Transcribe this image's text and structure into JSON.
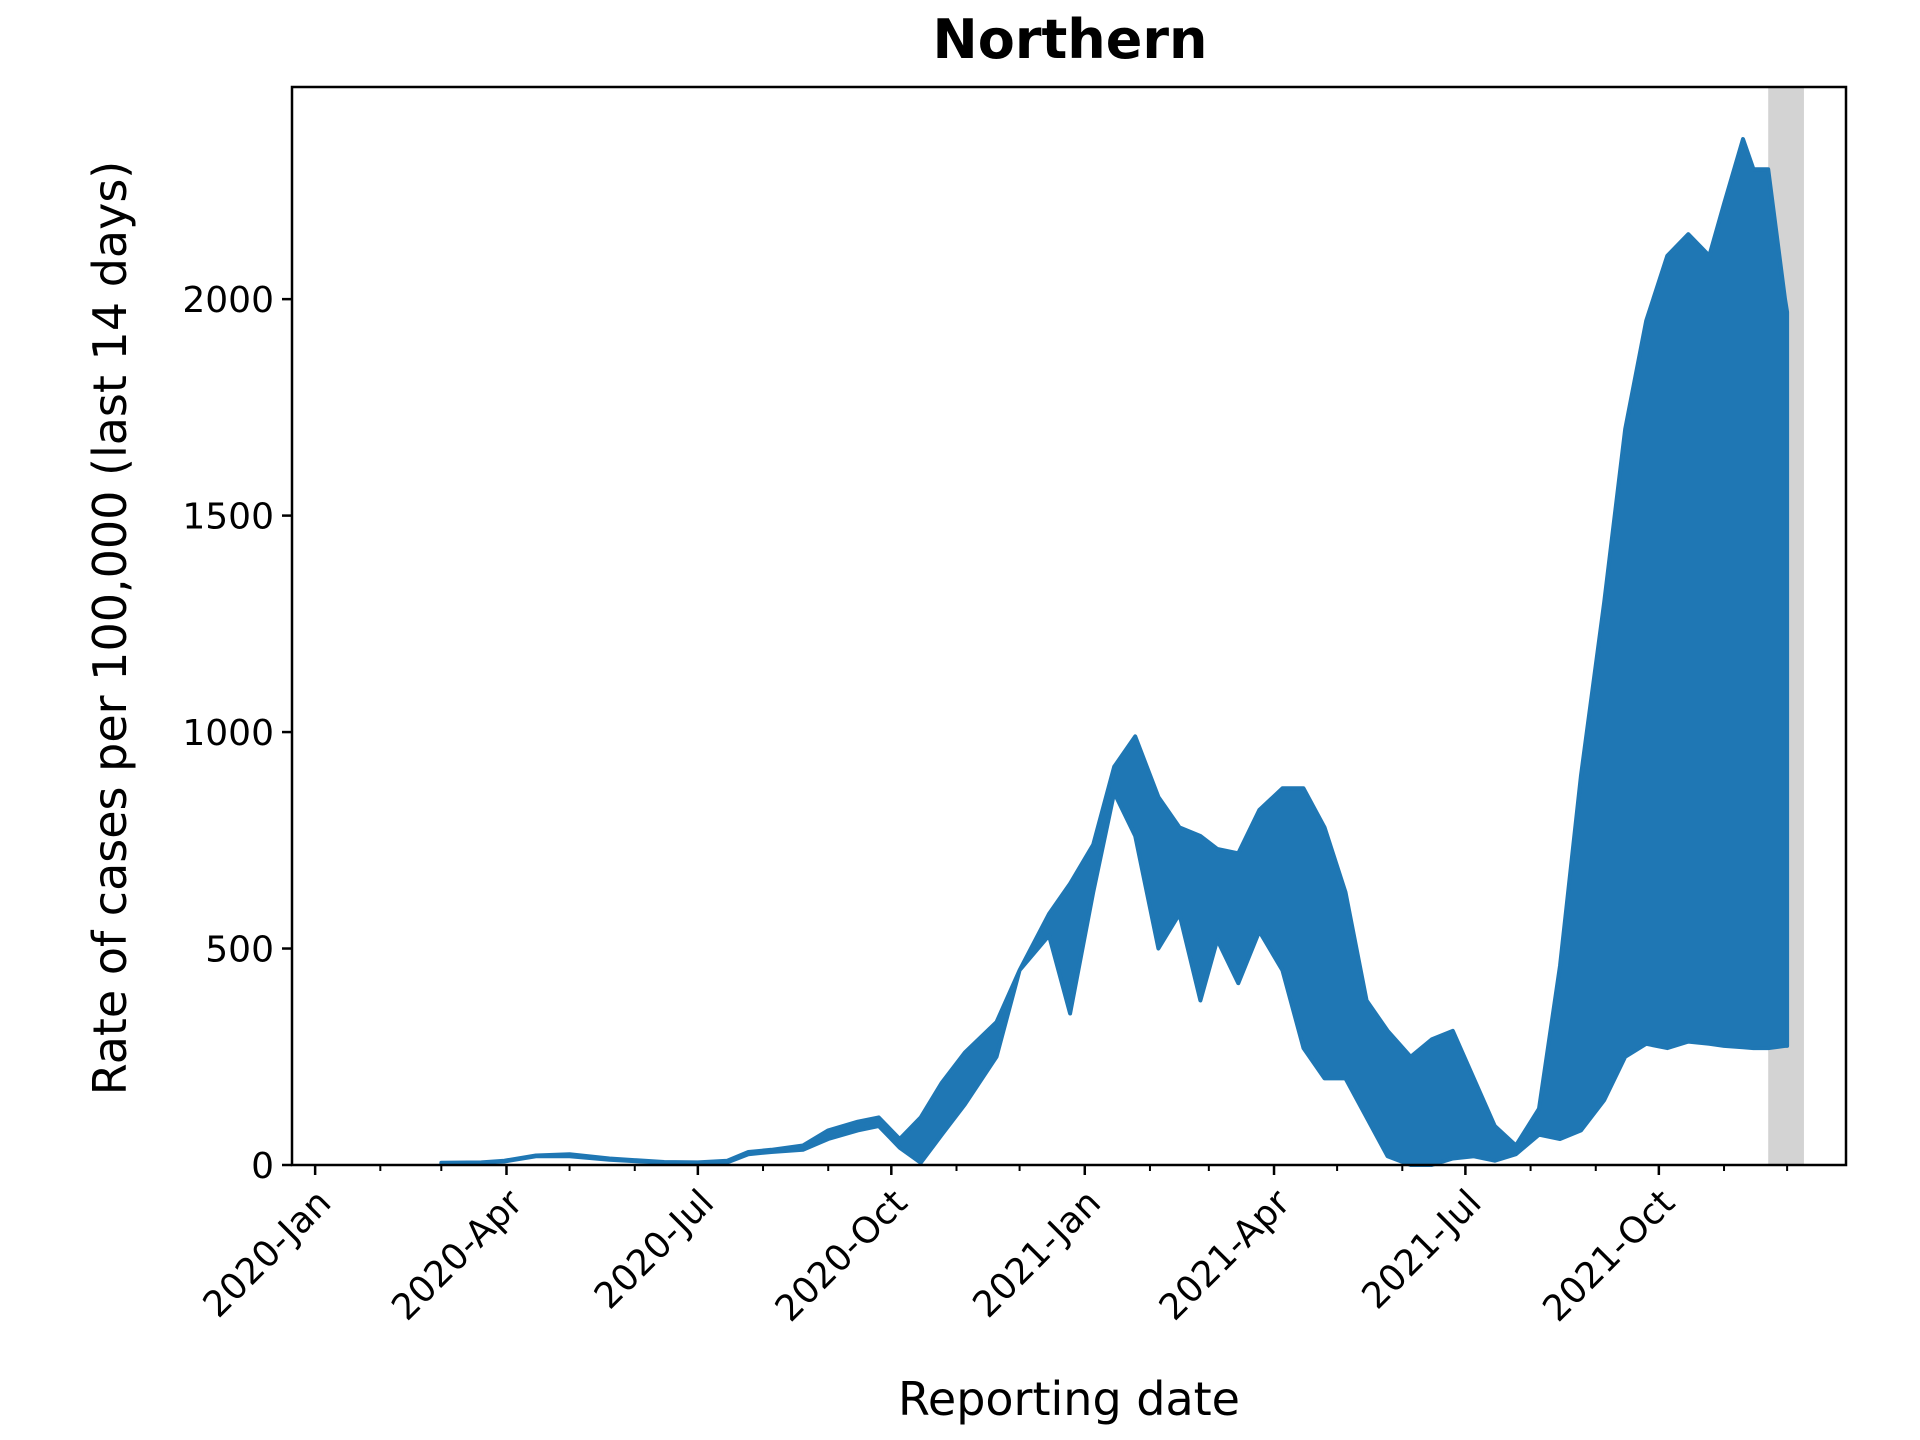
{
  "chart_data": {
    "type": "area",
    "title": "Northern",
    "xlabel": "Reporting date",
    "ylabel": "Rate of cases per 100,000 (last 14 days)",
    "y_ticks": [
      0,
      500,
      1000,
      1500,
      2000
    ],
    "y_tick_labels": [
      "0",
      "500",
      "1000",
      "1500",
      "2000"
    ],
    "ylim": [
      0,
      2490
    ],
    "xlim": [
      "2019-12-21",
      "2021-12-29"
    ],
    "x_ticks": [
      "2020-01-01",
      "2020-04-01",
      "2020-07-01",
      "2020-10-01",
      "2021-01-01",
      "2021-04-01",
      "2021-07-01",
      "2021-10-01"
    ],
    "x_tick_labels": [
      "2020-Jan",
      "2020-Apr",
      "2020-Jul",
      "2020-Oct",
      "2021-Jan",
      "2021-Apr",
      "2021-Jul",
      "2021-Oct"
    ],
    "x_minor_ticks": [
      "2020-02-01",
      "2020-03-01",
      "2020-05-01",
      "2020-06-01",
      "2020-08-01",
      "2020-09-01",
      "2020-11-01",
      "2020-12-01",
      "2021-02-01",
      "2021-03-01",
      "2021-05-01",
      "2021-06-01",
      "2021-08-01",
      "2021-09-01",
      "2021-11-01",
      "2021-12-01"
    ],
    "shaded_region": {
      "start": "2021-11-22",
      "end": "2021-12-09",
      "color": "#d3d3d3"
    },
    "series": [
      {
        "color": "#1f77b4",
        "x": [
          "2020-03-01",
          "2020-03-20",
          "2020-03-31",
          "2020-04-15",
          "2020-05-01",
          "2020-05-20",
          "2020-06-15",
          "2020-07-01",
          "2020-07-15",
          "2020-07-25",
          "2020-08-05",
          "2020-08-20",
          "2020-09-01",
          "2020-09-15",
          "2020-09-25",
          "2020-10-05",
          "2020-10-15",
          "2020-10-25",
          "2020-11-05",
          "2020-11-20",
          "2020-12-01",
          "2020-12-15",
          "2020-12-25",
          "2021-01-05",
          "2021-01-15",
          "2021-01-25",
          "2021-02-05",
          "2021-02-15",
          "2021-02-25",
          "2021-03-05",
          "2021-03-15",
          "2021-03-25",
          "2021-04-05",
          "2021-04-15",
          "2021-04-25",
          "2021-05-05",
          "2021-05-15",
          "2021-05-25",
          "2021-06-05",
          "2021-06-15",
          "2021-06-25",
          "2021-07-05",
          "2021-07-15",
          "2021-07-25",
          "2021-08-05",
          "2021-08-15",
          "2021-08-25",
          "2021-09-05",
          "2021-09-15",
          "2021-09-25",
          "2021-10-05",
          "2021-10-15",
          "2021-10-25",
          "2021-11-01",
          "2021-11-10",
          "2021-11-15",
          "2021-11-22",
          "2021-11-30",
          "2021-12-01"
        ],
        "upper": [
          5,
          6,
          10,
          22,
          25,
          15,
          7,
          6,
          10,
          30,
          35,
          45,
          80,
          100,
          110,
          60,
          110,
          190,
          260,
          330,
          450,
          580,
          650,
          740,
          920,
          990,
          850,
          780,
          760,
          730,
          720,
          820,
          870,
          870,
          780,
          630,
          380,
          310,
          250,
          290,
          310,
          200,
          90,
          45,
          130,
          460,
          900,
          1300,
          1700,
          1950,
          2100,
          2150,
          2100,
          2220,
          2370,
          2300,
          2300,
          2000,
          1970
        ],
        "lower": [
          4,
          5,
          8,
          20,
          20,
          12,
          5,
          5,
          6,
          25,
          30,
          35,
          60,
          80,
          90,
          40,
          5,
          70,
          140,
          250,
          450,
          530,
          350,
          630,
          860,
          760,
          500,
          580,
          380,
          520,
          420,
          540,
          450,
          270,
          200,
          200,
          110,
          20,
          0,
          0,
          15,
          20,
          10,
          25,
          70,
          60,
          80,
          150,
          250,
          280,
          270,
          285,
          280,
          275,
          272,
          270,
          270,
          275,
          275
        ]
      }
    ]
  }
}
